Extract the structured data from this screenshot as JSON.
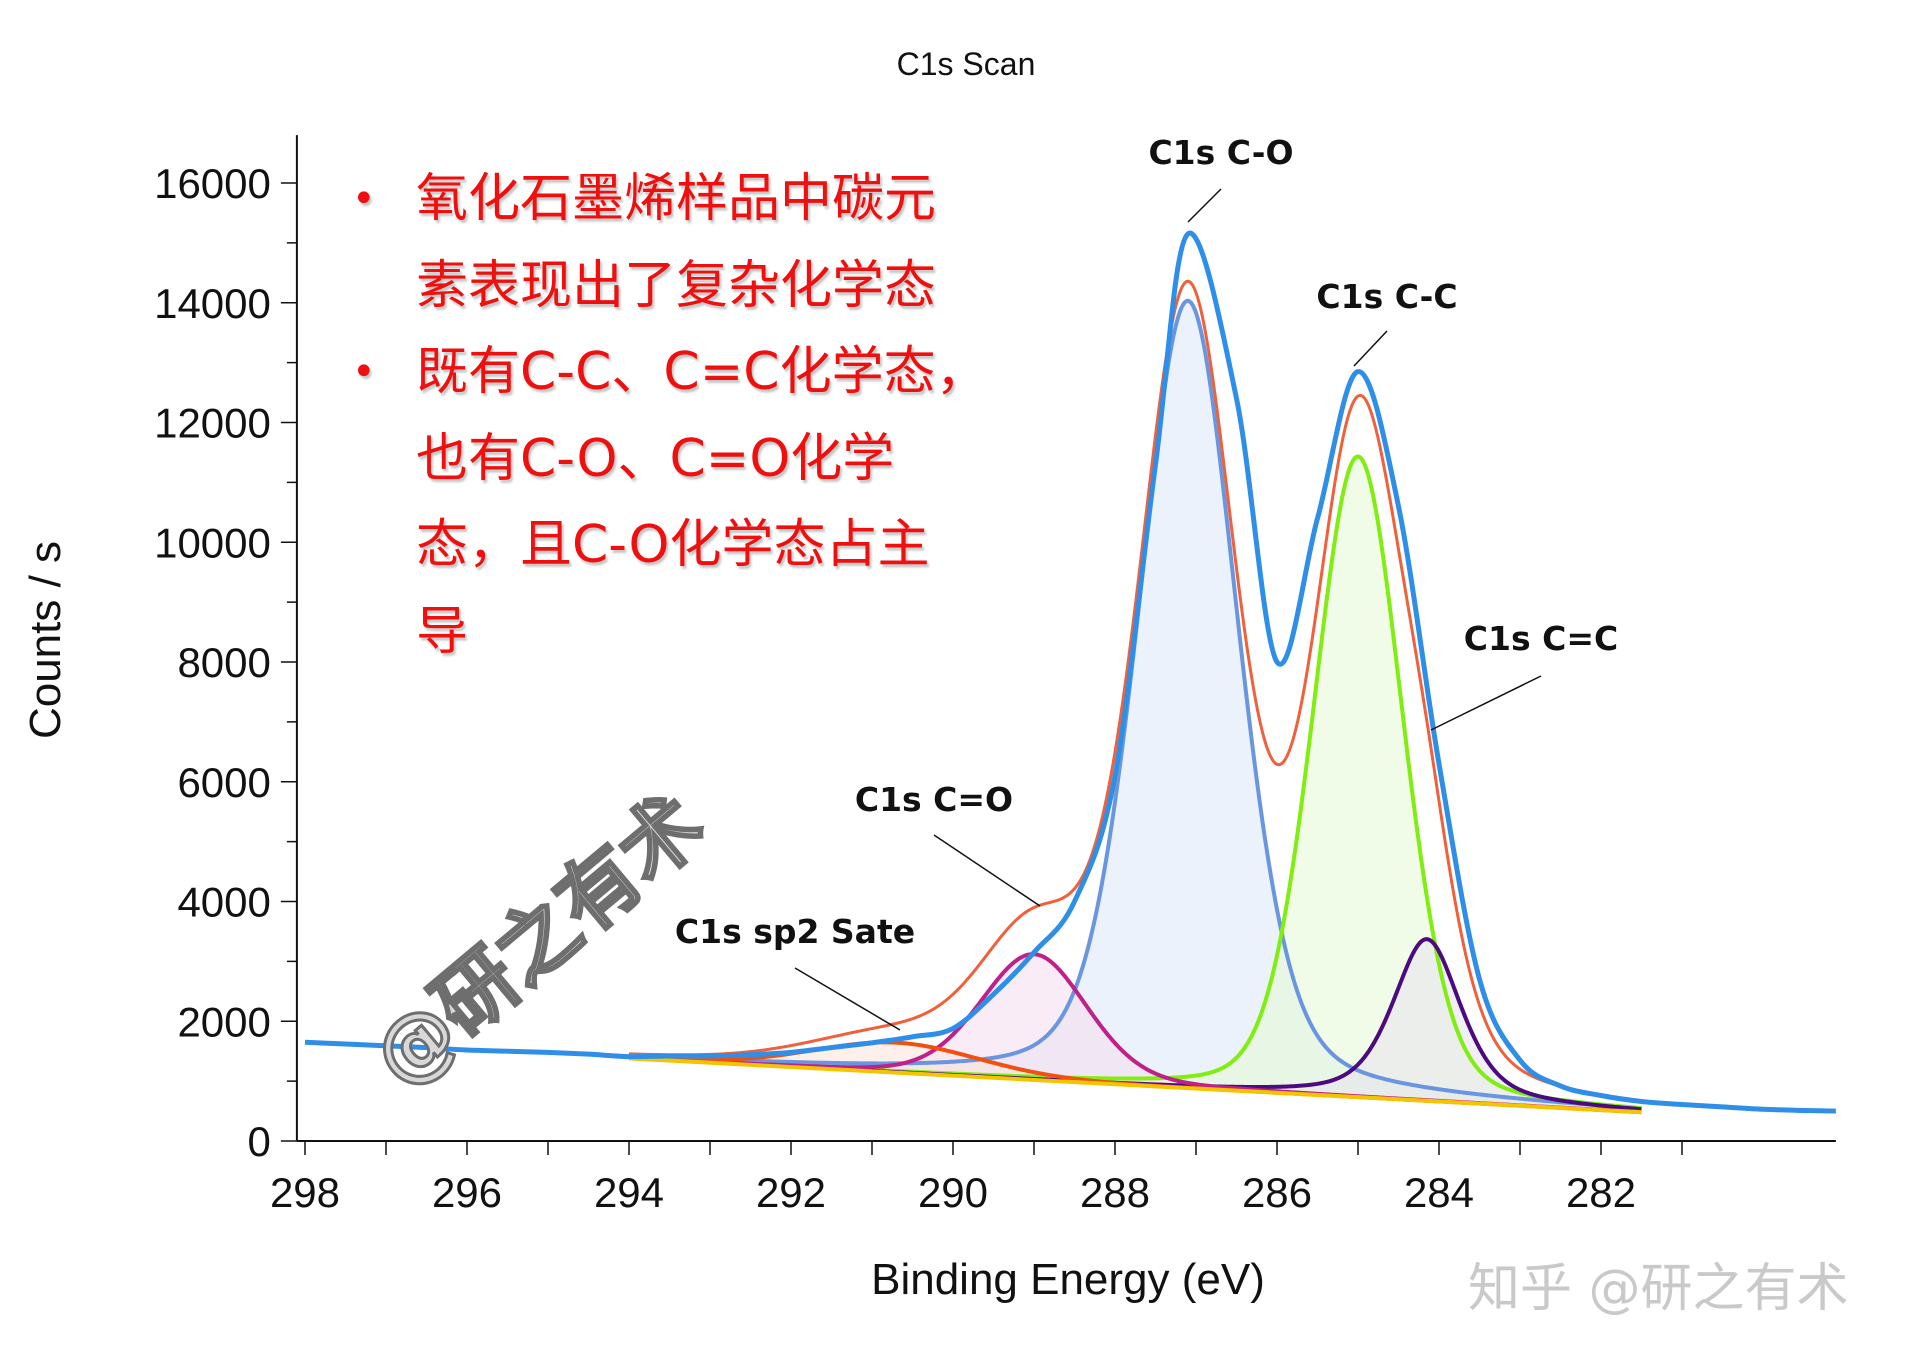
{
  "chart_data": {
    "type": "line",
    "title": "C1s Scan",
    "xlabel": "Binding Energy (eV)",
    "ylabel": "Counts / s",
    "xlim": [
      298.1,
      279.1
    ],
    "x_reversed": true,
    "ylim": [
      0,
      16800
    ],
    "x_ticks": [
      "298",
      "296",
      "294",
      "292",
      "290",
      "288",
      "286",
      "284",
      "282"
    ],
    "y_ticks": [
      "0",
      "2000",
      "4000",
      "6000",
      "8000",
      "10000",
      "12000",
      "14000",
      "16000"
    ],
    "grid": false,
    "legend": "none",
    "measured": {
      "color": "#2f8fe8",
      "x": [
        298,
        297.5,
        297,
        296.5,
        296,
        295.5,
        295,
        294.5,
        294,
        293.5,
        293,
        292.5,
        292,
        291.5,
        291,
        290.5,
        290,
        289.5,
        289,
        288.5,
        288,
        287.5,
        287.1,
        286.5,
        286,
        285.5,
        285,
        284.5,
        284,
        283.5,
        283,
        282.5,
        282,
        281.5,
        281,
        280.5,
        280,
        279.5,
        279.1
      ],
      "y": [
        1650,
        1620,
        1590,
        1560,
        1520,
        1500,
        1480,
        1450,
        1410,
        1420,
        1420,
        1440,
        1480,
        1560,
        1640,
        1740,
        1880,
        2450,
        3150,
        4000,
        6100,
        11300,
        15150,
        12400,
        8000,
        10400,
        12850,
        10600,
        6300,
        2700,
        1350,
        920,
        760,
        660,
        610,
        570,
        530,
        510,
        500
      ]
    },
    "envelope_color": "#f0603a",
    "baseline": {
      "color": "#f5c400",
      "x": [
        294,
        281.5
      ],
      "y": [
        1380,
        480
      ]
    },
    "components": [
      {
        "label": "C1s C-O",
        "center": 287.1,
        "height": 13150,
        "fwhm": 1.45,
        "lorentz_fraction": 0.3,
        "color": "#6a96e0",
        "fill": "#dce8f8"
      },
      {
        "label": "C1s C-C",
        "center": 285.0,
        "height": 10700,
        "fwhm": 1.3,
        "lorentz_fraction": 0.2,
        "color": "#80ee10",
        "fill": "#e6fad6"
      },
      {
        "label": "C1s C=C",
        "center": 284.15,
        "height": 2700,
        "fwhm": 1.0,
        "lorentz_fraction": 0.55,
        "color": "#4b0a80",
        "fill": "#e6e2ec"
      },
      {
        "label": "C1s C=O",
        "center": 289.0,
        "height": 2100,
        "fwhm": 1.55,
        "lorentz_fraction": 0.2,
        "color": "#c0208a",
        "fill": "#f6dcee"
      },
      {
        "label": "C1s sp2 Sate",
        "center": 290.7,
        "height": 500,
        "fwhm": 2.4,
        "lorentz_fraction": 0.1,
        "color": "#f05010",
        "fill": "#fbe3da"
      }
    ]
  },
  "notes": [
    {
      "bullet": "•",
      "lines": [
        "氧化石墨烯样品中碳元",
        "素表现出了复杂化学态"
      ]
    },
    {
      "bullet": "•",
      "lines": [
        "既有C-C、C=C化学态，",
        "也有C-O、C=O化学",
        "态，且C-O化学态占主",
        "导"
      ]
    }
  ],
  "watermarks": {
    "left": "@研之有术",
    "right": "知乎 @研之有术"
  }
}
